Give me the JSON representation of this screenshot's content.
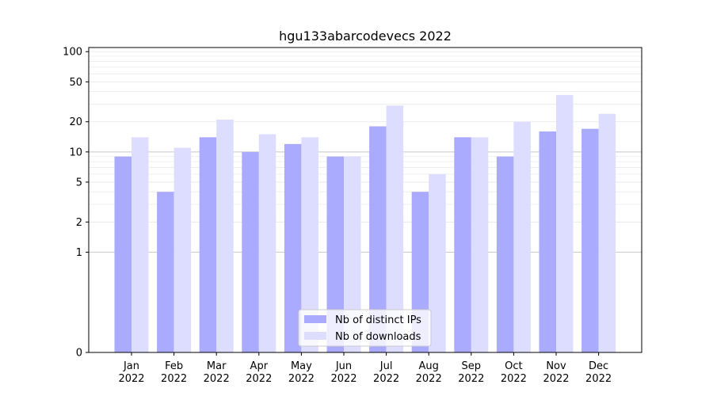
{
  "chart_data": {
    "type": "bar",
    "title": "hgu133abarcodevecs 2022",
    "xlabel": "",
    "ylabel": "",
    "y_scale": "symlog",
    "ylim": [
      0,
      110
    ],
    "yticks": [
      0,
      1,
      2,
      5,
      10,
      20,
      50,
      100
    ],
    "ytick_labels": [
      "0",
      "1",
      "2",
      "5",
      "10",
      "20",
      "50",
      "100"
    ],
    "grid": "horizontal",
    "legend_position": "bottom-center",
    "categories": [
      [
        "Jan",
        "2022"
      ],
      [
        "Feb",
        "2022"
      ],
      [
        "Mar",
        "2022"
      ],
      [
        "Apr",
        "2022"
      ],
      [
        "May",
        "2022"
      ],
      [
        "Jun",
        "2022"
      ],
      [
        "Jul",
        "2022"
      ],
      [
        "Aug",
        "2022"
      ],
      [
        "Sep",
        "2022"
      ],
      [
        "Oct",
        "2022"
      ],
      [
        "Nov",
        "2022"
      ],
      [
        "Dec",
        "2022"
      ]
    ],
    "series": [
      {
        "name": "Nb of distinct IPs",
        "color": "#aaaaff",
        "values": [
          9,
          4,
          14,
          10,
          12,
          9,
          18,
          4,
          14,
          9,
          16,
          17
        ]
      },
      {
        "name": "Nb of downloads",
        "color": "#ddddff",
        "values": [
          14,
          11,
          21,
          15,
          14,
          9,
          29,
          6,
          14,
          20,
          37,
          24
        ]
      }
    ]
  }
}
